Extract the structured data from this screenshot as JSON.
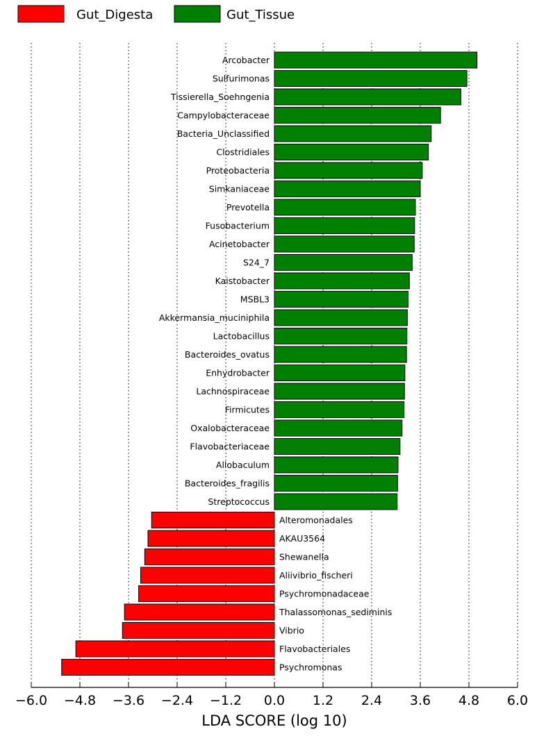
{
  "legend": [
    {
      "label": "Gut_Digesta",
      "color": "#ff0000"
    },
    {
      "label": "Gut_Tissue",
      "color": "#008000"
    }
  ],
  "chart_data": {
    "type": "bar",
    "orientation": "horizontal",
    "xlabel": "LDA SCORE (log 10)",
    "xlim": [
      -6.0,
      6.0
    ],
    "xticks": [
      "−6.0",
      "−4.8",
      "−3.6",
      "−2.4",
      "−1.2",
      "0.0",
      "1.2",
      "2.4",
      "3.6",
      "4.8",
      "6.0"
    ],
    "grid": "vertical dotted",
    "legend_position": "top-left",
    "categories": [
      "Arcobacter",
      "Sulfurimonas",
      "Tissierella_Soehngenia",
      "Campylobacteraceae",
      "Bacteria_Unclassified",
      "Clostridiales",
      "Proteobacteria",
      "Simkaniaceae",
      "Prevotella",
      "Fusobacterium",
      "Acinetobacter",
      "S24_7",
      "Kaistobacter",
      "MSBL3",
      "Akkermansia_muciniphila",
      "Lactobacillus",
      "Bacteroides_ovatus",
      "Enhydrobacter",
      "Lachnospiraceae",
      "Firmicutes",
      "Oxalobacteraceae",
      "Flavobacteriaceae",
      "Allobaculum",
      "Bacteroides_fragilis",
      "Streptococcus",
      "Alteromonadales",
      "AKAU3564",
      "Shewanella",
      "Aliivibrio_fischeri",
      "Psychromonadaceae",
      "Thalassomonas_sediminis",
      "Vibrio",
      "Flavobacteriales",
      "Psychromonas"
    ],
    "values": [
      5.0,
      4.75,
      4.6,
      4.1,
      3.87,
      3.8,
      3.65,
      3.6,
      3.48,
      3.46,
      3.45,
      3.4,
      3.33,
      3.3,
      3.28,
      3.27,
      3.26,
      3.22,
      3.21,
      3.2,
      3.15,
      3.1,
      3.05,
      3.04,
      3.03,
      -3.03,
      -3.12,
      -3.2,
      -3.3,
      -3.35,
      -3.7,
      -3.75,
      -4.9,
      -5.25
    ],
    "groups": [
      "Gut_Tissue",
      "Gut_Tissue",
      "Gut_Tissue",
      "Gut_Tissue",
      "Gut_Tissue",
      "Gut_Tissue",
      "Gut_Tissue",
      "Gut_Tissue",
      "Gut_Tissue",
      "Gut_Tissue",
      "Gut_Tissue",
      "Gut_Tissue",
      "Gut_Tissue",
      "Gut_Tissue",
      "Gut_Tissue",
      "Gut_Tissue",
      "Gut_Tissue",
      "Gut_Tissue",
      "Gut_Tissue",
      "Gut_Tissue",
      "Gut_Tissue",
      "Gut_Tissue",
      "Gut_Tissue",
      "Gut_Tissue",
      "Gut_Tissue",
      "Gut_Digesta",
      "Gut_Digesta",
      "Gut_Digesta",
      "Gut_Digesta",
      "Gut_Digesta",
      "Gut_Digesta",
      "Gut_Digesta",
      "Gut_Digesta",
      "Gut_Digesta"
    ]
  }
}
